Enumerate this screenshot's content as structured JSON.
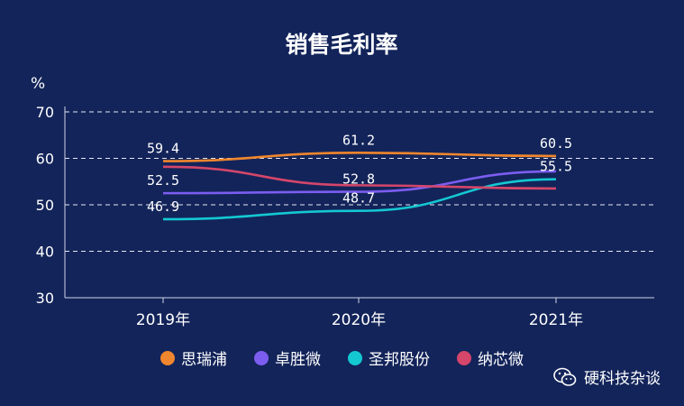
{
  "chart_data": {
    "type": "line",
    "title": "销售毛利率",
    "ylabel": "%",
    "xlabel": "",
    "categories": [
      "2019年",
      "2020年",
      "2021年"
    ],
    "ylim": [
      30,
      70
    ],
    "yticks": [
      30,
      40,
      50,
      60,
      70
    ],
    "grid": true,
    "legend_position": "bottom",
    "series": [
      {
        "name": "思瑞浦",
        "values": [
          59.4,
          61.2,
          60.5
        ],
        "color": "#f0862d",
        "labels": [
          "59.4",
          "61.2",
          "60.5"
        ]
      },
      {
        "name": "卓胜微",
        "values": [
          52.5,
          52.8,
          57.2
        ],
        "color": "#7b5df0",
        "labels": [
          "52.5",
          "52.8",
          ""
        ]
      },
      {
        "name": "圣邦股份",
        "values": [
          46.9,
          48.7,
          55.5
        ],
        "color": "#14c8d2",
        "labels": [
          "46.9",
          "48.7",
          "55.5"
        ]
      },
      {
        "name": "纳芯微",
        "values": [
          58.2,
          54.2,
          53.5
        ],
        "color": "#d4466a",
        "labels": [
          "",
          "",
          ""
        ]
      }
    ]
  },
  "watermark": {
    "icon": "wechat-icon",
    "text": "硬科技杂谈"
  }
}
